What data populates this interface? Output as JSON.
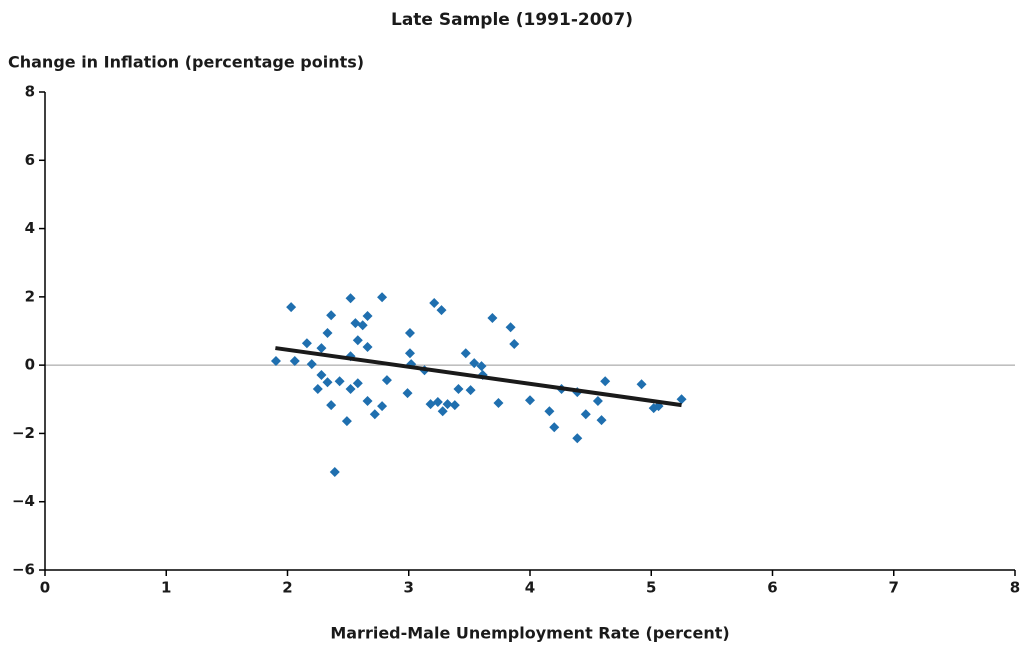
{
  "chart_data": {
    "type": "scatter",
    "title": "Late Sample (1991-2007)",
    "ylabel": "Change in Inflation (percentage points)",
    "xlabel": "Married-Male Unemployment Rate (percent)",
    "color": "#1f6faf",
    "xlim": [
      0,
      8
    ],
    "ylim": [
      -6,
      8
    ],
    "xticks": [
      0,
      1,
      2,
      3,
      4,
      5,
      6,
      7,
      8
    ],
    "yticks": [
      {
        "value": -6,
        "label": "−6"
      },
      {
        "value": -4,
        "label": "−4"
      },
      {
        "value": -2,
        "label": "−2"
      },
      0,
      2,
      4,
      6,
      8
    ],
    "x": [
      1.905,
      2.03,
      2.06,
      2.16,
      2.2,
      2.25,
      2.28,
      2.28,
      2.33,
      2.33,
      2.36,
      2.36,
      2.39,
      2.43,
      2.49,
      2.52,
      2.52,
      2.52,
      2.56,
      2.58,
      2.58,
      2.62,
      2.66,
      2.66,
      2.66,
      2.72,
      2.78,
      2.78,
      2.82,
      2.99,
      3.01,
      3.01,
      3.02,
      3.13,
      3.18,
      3.21,
      3.24,
      3.27,
      3.28,
      3.32,
      3.38,
      3.41,
      3.47,
      3.51,
      3.54,
      3.6,
      3.61,
      3.69,
      3.74,
      3.84,
      3.87,
      4.0,
      4.16,
      4.2,
      4.26,
      4.39,
      4.39,
      4.46,
      4.56,
      4.59,
      4.62,
      4.92,
      5.02,
      5.06,
      5.25
    ],
    "values": [
      0.12,
      1.7,
      0.12,
      0.64,
      0.03,
      -0.7,
      0.5,
      -0.29,
      -0.5,
      0.94,
      1.46,
      -1.17,
      -3.13,
      -0.47,
      -1.64,
      1.96,
      0.26,
      -0.7,
      1.23,
      0.73,
      -0.53,
      1.17,
      1.44,
      0.53,
      -1.05,
      -1.44,
      1.99,
      -1.2,
      -0.44,
      -0.82,
      0.94,
      0.35,
      0.03,
      -0.15,
      -1.14,
      1.82,
      -1.08,
      1.61,
      -1.35,
      -1.14,
      -1.17,
      -0.7,
      0.35,
      -0.73,
      0.06,
      -0.03,
      -0.29,
      1.38,
      -1.11,
      1.11,
      0.62,
      -1.03,
      -1.35,
      -1.82,
      -0.7,
      -0.79,
      -2.14,
      -1.44,
      -1.05,
      -1.61,
      -0.47,
      -0.56,
      -1.26,
      -1.2,
      -1.0
    ],
    "fit_line": {
      "x": [
        1.9,
        5.25
      ],
      "values": [
        0.5,
        -1.17
      ],
      "color": "#1a1a1a"
    },
    "zero_line": 0
  }
}
